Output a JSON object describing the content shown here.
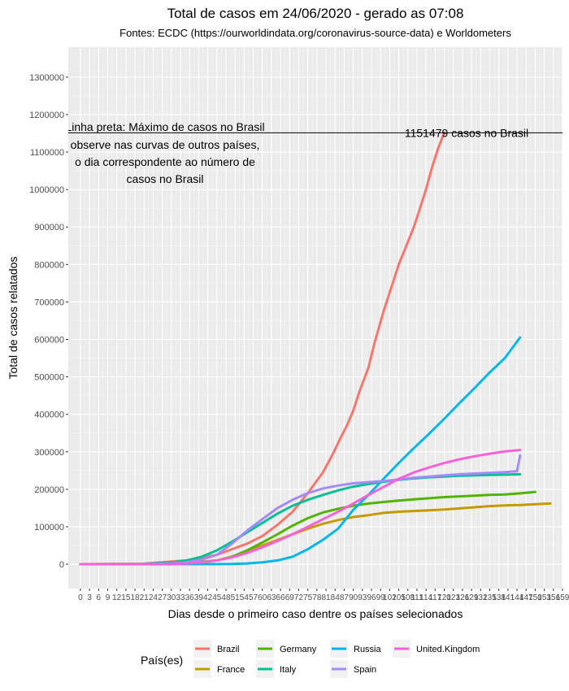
{
  "chart_data": {
    "type": "line",
    "title": "Total de casos em 24/06/2020 - gerado as 07:08",
    "subtitle": "Fontes: ECDC (https://ourworldindata.org/coronavirus-source-data) e Worldometers",
    "xlabel": "Dias desde o primeiro caso dentre os países selecionados",
    "ylabel": "Total de casos relatados",
    "xlim": [
      -4,
      159
    ],
    "ylim": [
      -65000,
      1380000
    ],
    "grid": true,
    "legend_title": "País(es)",
    "legend_position": "bottom",
    "y_ticks": [
      0,
      100000,
      200000,
      300000,
      400000,
      500000,
      600000,
      700000,
      800000,
      900000,
      1000000,
      1100000,
      1200000,
      1300000
    ],
    "x_tick_labels": [
      "0",
      "3",
      "6",
      "9",
      "12",
      "15",
      "18",
      "21",
      "24",
      "27",
      "30",
      "33",
      "36",
      "39",
      "42",
      "45",
      "48",
      "51",
      "54",
      "57",
      "60",
      "63",
      "66",
      "69",
      "72",
      "75",
      "78",
      "81",
      "84",
      "87",
      "90",
      "93",
      "96",
      "99",
      "102",
      "105",
      "108",
      "111",
      "114",
      "117",
      "120",
      "123",
      "126",
      "129",
      "132",
      "135",
      "138",
      "141",
      "144",
      "147",
      "150",
      "153",
      "156",
      "159"
    ],
    "hline": {
      "y": 1151479,
      "label": "1151479 casos no Brasil"
    },
    "annotation": [
      "Linha preta: Máximo de casos no Brasil",
      "observe nas curvas de outros países,",
      "o dia correspondente ao número de",
      "casos no Brasil"
    ],
    "series": [
      {
        "name": "Brazil",
        "color": "#F8766D",
        "x": [
          0,
          20,
          35,
          45,
          50,
          55,
          60,
          65,
          70,
          75,
          80,
          83,
          86,
          88,
          90,
          92,
          95,
          97,
          100,
          102,
          105,
          108,
          110,
          112,
          114,
          116,
          118,
          120
        ],
        "y": [
          0,
          1000,
          10000,
          25000,
          40000,
          55000,
          75000,
          105000,
          140000,
          190000,
          245000,
          290000,
          340000,
          372000,
          410000,
          460000,
          525000,
          590000,
          675000,
          725000,
          800000,
          860000,
          900000,
          950000,
          1000000,
          1060000,
          1110000,
          1151479
        ]
      },
      {
        "name": "France",
        "color": "#C49A00",
        "x": [
          0,
          20,
          35,
          45,
          50,
          55,
          60,
          65,
          70,
          75,
          80,
          85,
          90,
          95,
          100,
          105,
          110,
          115,
          120,
          125,
          130,
          135,
          140,
          145,
          150,
          155
        ],
        "y": [
          0,
          500,
          3000,
          10000,
          20000,
          35000,
          50000,
          65000,
          80000,
          95000,
          108000,
          118000,
          126000,
          131000,
          137000,
          140000,
          142000,
          144000,
          146000,
          149000,
          152000,
          155000,
          157000,
          158000,
          160000,
          162000
        ]
      },
      {
        "name": "Germany",
        "color": "#53B400",
        "x": [
          0,
          20,
          35,
          45,
          50,
          55,
          60,
          65,
          70,
          75,
          80,
          85,
          90,
          95,
          100,
          105,
          110,
          115,
          120,
          125,
          130,
          135,
          140,
          145,
          150
        ],
        "y": [
          0,
          200,
          2000,
          10000,
          20000,
          37000,
          58000,
          80000,
          103000,
          123000,
          138000,
          148000,
          156000,
          162000,
          166000,
          170000,
          173000,
          176000,
          179000,
          181000,
          183000,
          185000,
          186000,
          189000,
          193000
        ]
      },
      {
        "name": "Italy",
        "color": "#00C094",
        "x": [
          0,
          20,
          30,
          35,
          40,
          45,
          50,
          55,
          60,
          65,
          70,
          75,
          80,
          85,
          90,
          95,
          100,
          105,
          110,
          115,
          120,
          125,
          130,
          135,
          140,
          145
        ],
        "y": [
          0,
          500,
          5000,
          10000,
          20000,
          37000,
          60000,
          85000,
          110000,
          135000,
          156000,
          172000,
          185000,
          197000,
          207000,
          214000,
          220000,
          225000,
          229000,
          232000,
          234000,
          236000,
          237000,
          238000,
          239000,
          240000
        ]
      },
      {
        "name": "Russia",
        "color": "#00B6EB",
        "x": [
          0,
          40,
          50,
          55,
          60,
          65,
          70,
          75,
          80,
          85,
          90,
          95,
          100,
          105,
          110,
          115,
          120,
          125,
          130,
          135,
          140,
          145
        ],
        "y": [
          0,
          200,
          500,
          2000,
          5000,
          10000,
          20000,
          40000,
          65000,
          95000,
          145000,
          185000,
          228000,
          270000,
          310000,
          348000,
          388000,
          430000,
          470000,
          512000,
          550000,
          605000
        ]
      },
      {
        "name": "Spain",
        "color": "#A58AFF",
        "x": [
          0,
          20,
          30,
          35,
          40,
          45,
          50,
          55,
          60,
          65,
          70,
          75,
          80,
          85,
          90,
          95,
          100,
          105,
          110,
          115,
          120,
          125,
          130,
          135,
          140,
          144,
          145
        ],
        "y": [
          0,
          100,
          2000,
          5000,
          12000,
          25000,
          55000,
          90000,
          120000,
          150000,
          172000,
          190000,
          202000,
          210000,
          216000,
          219000,
          222000,
          226000,
          231000,
          234000,
          237000,
          240000,
          242000,
          244000,
          246000,
          248000,
          290000
        ]
      },
      {
        "name": "United.Kingdom",
        "color": "#FB61D7",
        "x": [
          0,
          20,
          30,
          35,
          40,
          45,
          50,
          55,
          60,
          65,
          70,
          75,
          80,
          85,
          90,
          95,
          100,
          105,
          110,
          115,
          120,
          125,
          130,
          135,
          140,
          145
        ],
        "y": [
          0,
          100,
          1000,
          2000,
          5000,
          10000,
          18000,
          30000,
          45000,
          62000,
          80000,
          100000,
          120000,
          140000,
          162000,
          185000,
          206000,
          228000,
          245000,
          258000,
          270000,
          280000,
          288000,
          295000,
          301000,
          305000
        ]
      }
    ]
  }
}
